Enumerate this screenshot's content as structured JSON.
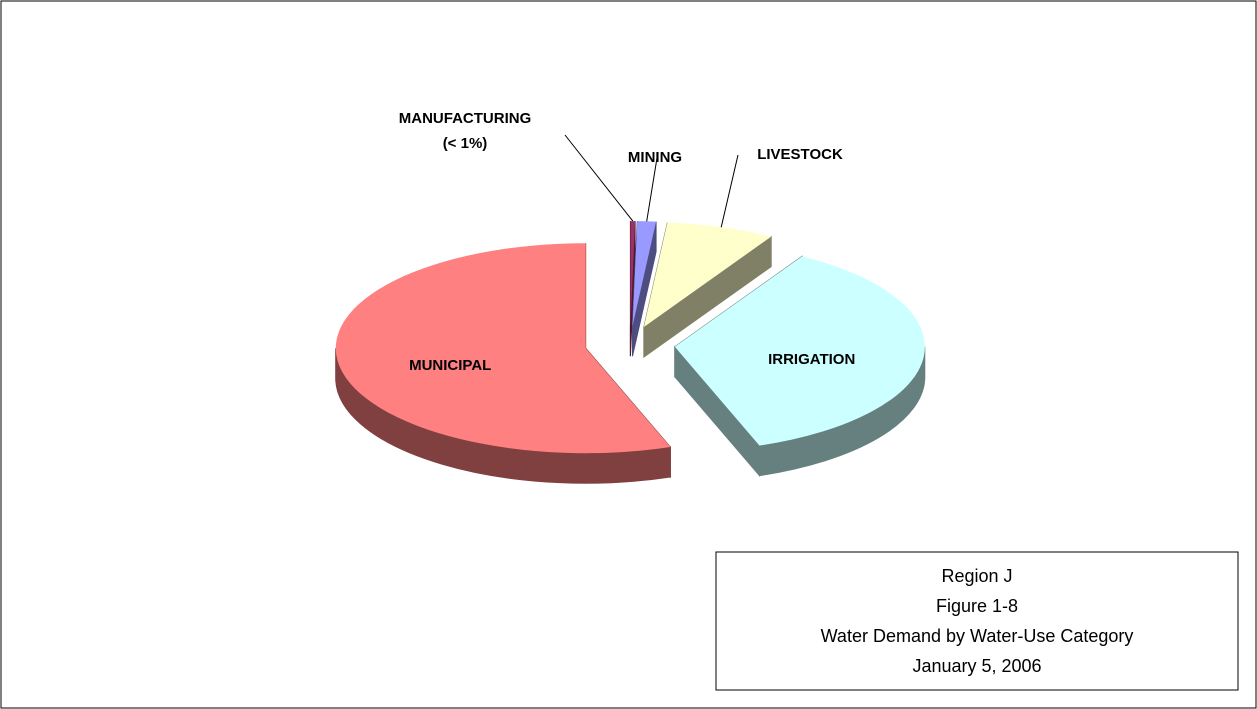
{
  "chart_data": {
    "type": "pie",
    "categories": [
      "MANUFACTURING",
      "MINING",
      "LIVESTOCK",
      "IRRIGATION",
      "MUNICIPAL"
    ],
    "values": [
      0.3,
      1.2,
      7,
      36,
      55.5
    ],
    "value_labels": [
      "(< 1%)",
      null,
      null,
      null,
      null
    ],
    "colors": [
      "#993366",
      "#9999ff",
      "#ffffcc",
      "#ccffff",
      "#ff8080"
    ],
    "title_lines": [
      "Region J",
      "Figure 1-8",
      "Water Demand by Water-Use Category",
      "January 5, 2006"
    ]
  }
}
